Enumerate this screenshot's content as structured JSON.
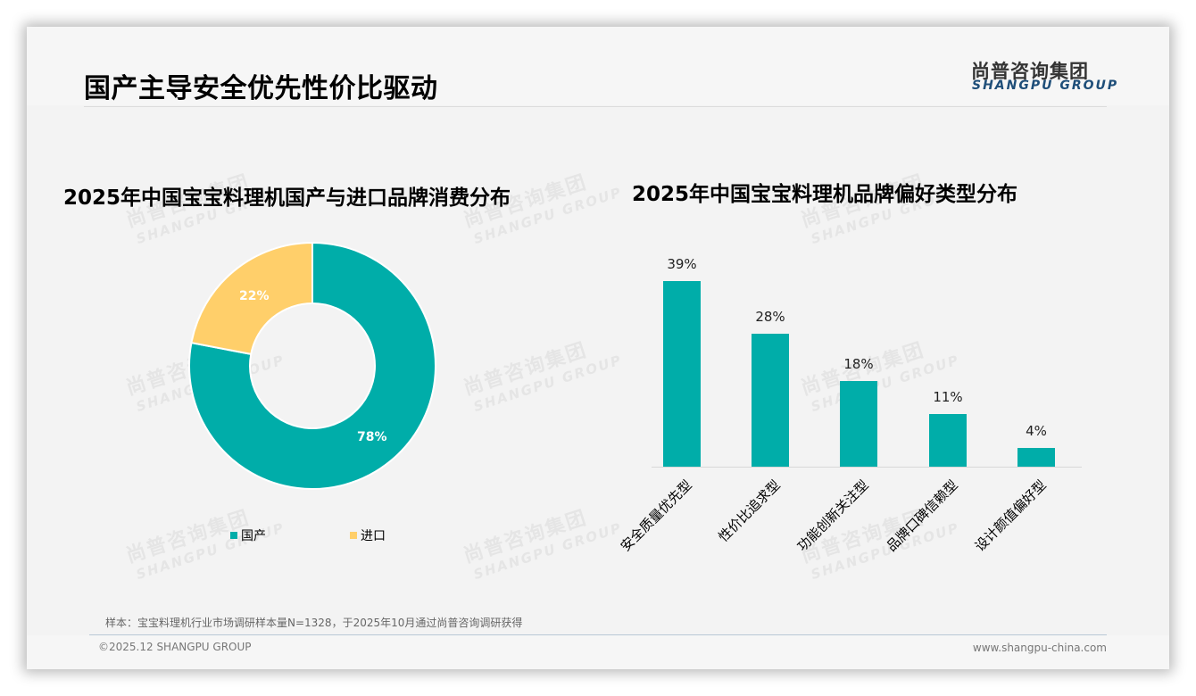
{
  "header": {
    "page_title": "国产主导安全优先性价比驱动",
    "logo_cn": "尚普咨询集团",
    "logo_en": "SHANGPU GROUP"
  },
  "watermark": {
    "cn": "尚普咨询集团",
    "en": "SHANGPU GROUP"
  },
  "colors": {
    "teal": "#00ADA9",
    "yellow": "#FFCF6A",
    "background": "#F3F3F3",
    "logo_blue": "#1E4E79"
  },
  "chart_data": [
    {
      "type": "pie",
      "variant": "donut",
      "title": "2025年中国宝宝料理机国产与进口品牌消费分布",
      "categories": [
        "国产",
        "进口"
      ],
      "values": [
        78,
        22
      ],
      "labels": [
        "78%",
        "22%"
      ],
      "colors": [
        "#00ADA9",
        "#FFCF6A"
      ],
      "legend_position": "bottom"
    },
    {
      "type": "bar",
      "title": "2025年中国宝宝料理机品牌偏好类型分布",
      "categories": [
        "安全质量优先型",
        "性价比追求型",
        "功能创新关注型",
        "品牌口碑信赖型",
        "设计颜值偏好型"
      ],
      "values": [
        39,
        28,
        18,
        11,
        4
      ],
      "labels": [
        "39%",
        "28%",
        "18%",
        "11%",
        "4%"
      ],
      "unit": "%",
      "color": "#00ADA9",
      "xlabel": "",
      "ylabel": "",
      "ylim": [
        0,
        40
      ],
      "grid": false,
      "x_tick_rotation": -45
    }
  ],
  "left_chart": {
    "title": "2025年中国宝宝料理机国产与进口品牌消费分布",
    "slices": [
      {
        "name": "国产",
        "value": 78,
        "label": "78%",
        "color": "#00ADA9"
      },
      {
        "name": "进口",
        "value": 22,
        "label": "22%",
        "color": "#FFCF6A"
      }
    ],
    "legend": [
      {
        "label": "国产",
        "color": "#00ADA9"
      },
      {
        "label": "进口",
        "color": "#FFCF6A"
      }
    ]
  },
  "right_chart": {
    "title": "2025年中国宝宝料理机品牌偏好类型分布",
    "bars": [
      {
        "category": "安全质量优先型",
        "value": 39,
        "label": "39%"
      },
      {
        "category": "性价比追求型",
        "value": 28,
        "label": "28%"
      },
      {
        "category": "功能创新关注型",
        "value": 18,
        "label": "18%"
      },
      {
        "category": "品牌口碑信赖型",
        "value": 11,
        "label": "11%"
      },
      {
        "category": "设计颜值偏好型",
        "value": 4,
        "label": "4%"
      }
    ]
  },
  "footer": {
    "note": "样本：宝宝料理机行业市场调研样本量N=1328，于2025年10月通过尚普咨询调研获得",
    "copyright": "©2025.12 SHANGPU GROUP",
    "website": "www.shangpu-china.com"
  }
}
